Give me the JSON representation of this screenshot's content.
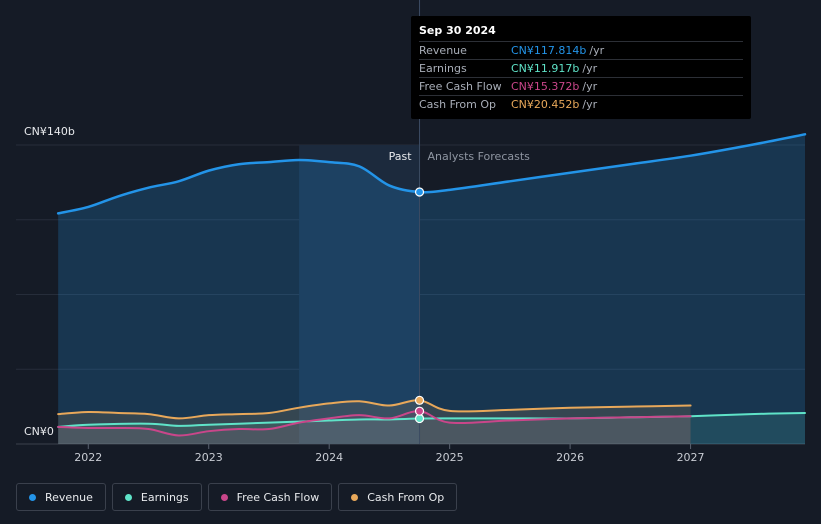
{
  "chart_data": {
    "type": "line",
    "y_tick_labels": [
      "CN¥140b",
      "CN¥0"
    ],
    "ylim": [
      0,
      140
    ],
    "xlim": [
      2021.4,
      2027.95
    ],
    "x_ticks": [
      2022,
      2023,
      2024,
      2025,
      2026,
      2027
    ],
    "x_tick_labels": [
      "2022",
      "2023",
      "2024",
      "2025",
      "2026",
      "2027"
    ],
    "past_label": "Past",
    "forecast_label": "Analysts Forecasts",
    "divider_x": 2024.75,
    "shade_start_x": 2023.75,
    "legend_position": "bottom",
    "series": [
      {
        "name": "Revenue",
        "color": "#2394e8",
        "x": [
          2021.75,
          2022.0,
          2022.25,
          2022.5,
          2022.75,
          2023.0,
          2023.25,
          2023.5,
          2023.75,
          2024.0,
          2024.25,
          2024.5,
          2024.75,
          2025.0,
          2025.5,
          2026.0,
          2026.5,
          2027.0,
          2027.5,
          2027.95
        ],
        "y": [
          108,
          111,
          116,
          120,
          123,
          128,
          131,
          132,
          133,
          132,
          130,
          121,
          118,
          119,
          123,
          127,
          131,
          135,
          140,
          145
        ]
      },
      {
        "name": "Earnings",
        "color": "#5fe3c8",
        "x": [
          2021.75,
          2022.0,
          2022.5,
          2022.75,
          2023.0,
          2023.5,
          2023.75,
          2024.0,
          2024.25,
          2024.5,
          2024.75,
          2025.0,
          2025.5,
          2026.0,
          2026.5,
          2027.0,
          2027.5,
          2027.95
        ],
        "y": [
          8,
          9,
          9.5,
          8.5,
          9,
          10,
          10.5,
          11,
          11.5,
          11.5,
          11.917,
          12,
          12,
          12,
          12.5,
          13,
          14,
          14.5
        ]
      },
      {
        "name": "Free Cash Flow",
        "color": "#c9468a",
        "x": [
          2021.75,
          2022.0,
          2022.25,
          2022.5,
          2022.75,
          2023.0,
          2023.25,
          2023.5,
          2023.75,
          2024.0,
          2024.25,
          2024.5,
          2024.75,
          2025.0,
          2025.5,
          2026.0,
          2026.5,
          2027.0
        ],
        "y": [
          8,
          7.5,
          7.5,
          7,
          4,
          6,
          7,
          7,
          10,
          12,
          13.5,
          12,
          15.372,
          10,
          11,
          12,
          12.5,
          13
        ]
      },
      {
        "name": "Cash From Op",
        "color": "#e8a85a",
        "x": [
          2021.75,
          2022.0,
          2022.25,
          2022.5,
          2022.75,
          2023.0,
          2023.25,
          2023.5,
          2023.75,
          2024.0,
          2024.25,
          2024.5,
          2024.75,
          2025.0,
          2025.5,
          2026.0,
          2026.5,
          2027.0
        ],
        "y": [
          14,
          15,
          14.5,
          14,
          12,
          13.5,
          14,
          14.5,
          17,
          19,
          20,
          18,
          20.452,
          15.5,
          16,
          17,
          17.5,
          18
        ]
      }
    ]
  },
  "tooltip": {
    "date": "Sep 30 2024",
    "unit": "/yr",
    "rows": [
      {
        "label": "Revenue",
        "value": "CN¥117.814b",
        "color": "#2394e8"
      },
      {
        "label": "Earnings",
        "value": "CN¥11.917b",
        "color": "#5fe3c8"
      },
      {
        "label": "Free Cash Flow",
        "value": "CN¥15.372b",
        "color": "#c9468a"
      },
      {
        "label": "Cash From Op",
        "value": "CN¥20.452b",
        "color": "#e8a85a"
      }
    ]
  },
  "legend": [
    {
      "label": "Revenue",
      "color": "#2394e8"
    },
    {
      "label": "Earnings",
      "color": "#5fe3c8"
    },
    {
      "label": "Free Cash Flow",
      "color": "#c9468a"
    },
    {
      "label": "Cash From Op",
      "color": "#e8a85a"
    }
  ]
}
